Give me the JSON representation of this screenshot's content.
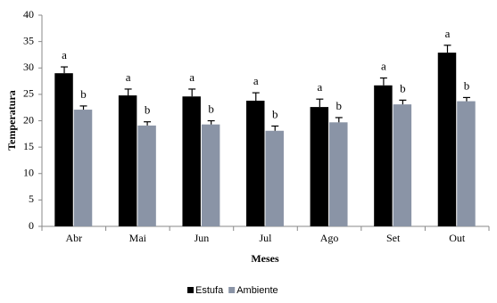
{
  "chart_data": {
    "type": "bar",
    "x_label": "Meses",
    "y_label": "Temperatura",
    "categories": [
      "Abr",
      "Mai",
      "Jun",
      "Jul",
      "Ago",
      "Set",
      "Out"
    ],
    "series": [
      {
        "name": "Estufa",
        "color": "#000000",
        "values": [
          29.0,
          24.8,
          24.6,
          23.8,
          22.6,
          26.7,
          32.9
        ],
        "errors": [
          1.2,
          1.2,
          1.4,
          1.5,
          1.5,
          1.4,
          1.4
        ],
        "letters": [
          "a",
          "a",
          "a",
          "a",
          "a",
          "a",
          "a"
        ]
      },
      {
        "name": "Ambiente",
        "color": "#8a94a6",
        "values": [
          22.1,
          19.1,
          19.3,
          18.1,
          19.7,
          23.1,
          23.7
        ],
        "errors": [
          0.7,
          0.7,
          0.7,
          0.9,
          0.9,
          0.8,
          0.7
        ],
        "letters": [
          "b",
          "b",
          "b",
          "b",
          "b",
          "b",
          "b"
        ]
      }
    ],
    "ylim": [
      0,
      40
    ],
    "yticks": [
      0,
      5,
      10,
      15,
      20,
      25,
      30,
      35,
      40
    ],
    "grid": false,
    "legend": "bottom"
  }
}
